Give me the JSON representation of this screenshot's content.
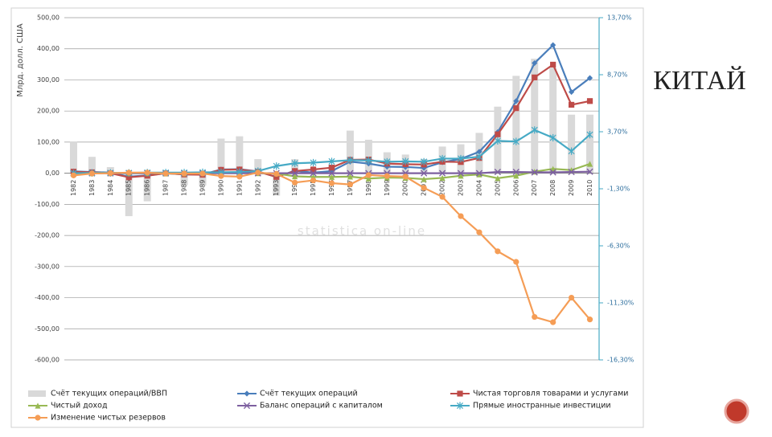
{
  "chart_data": {
    "type": "combo",
    "title": "КИТАЙ",
    "y_axis_label": "Млрд. долл. США",
    "watermark": "statistica on-line",
    "categories": [
      "1982",
      "1983",
      "1984",
      "1985",
      "1986",
      "1987",
      "1988",
      "1989",
      "1990",
      "1991",
      "1992",
      "1993",
      "1994",
      "1995",
      "1996",
      "1997",
      "1998",
      "1999",
      "2000",
      "2001",
      "2002",
      "2003",
      "2004",
      "2005",
      "2006",
      "2007",
      "2008",
      "2009",
      "2010"
    ],
    "ylim": [
      -600,
      500
    ],
    "yticks": [
      {
        "value": 500,
        "label": "500,00"
      },
      {
        "value": 400,
        "label": "400,00"
      },
      {
        "value": 300,
        "label": "300,00"
      },
      {
        "value": 200,
        "label": "200,00"
      },
      {
        "value": 100,
        "label": "100,00"
      },
      {
        "value": 0,
        "label": "0,00"
      },
      {
        "value": -100,
        "label": "-100,00"
      },
      {
        "value": -200,
        "label": "-200,00"
      },
      {
        "value": -300,
        "label": "-300,00"
      },
      {
        "value": -400,
        "label": "-400,00"
      },
      {
        "value": -500,
        "label": "-500,00"
      },
      {
        "value": -600,
        "label": "-600,00"
      }
    ],
    "y2lim": [
      -16.3,
      13.7
    ],
    "y2ticks": [
      {
        "value": 13.7,
        "label": "13,70%"
      },
      {
        "value": 8.7,
        "label": "8,70%"
      },
      {
        "value": 3.7,
        "label": "3,70%"
      },
      {
        "value": -1.3,
        "label": "-1,30%"
      },
      {
        "value": -6.3,
        "label": "-6,30%"
      },
      {
        "value": -11.3,
        "label": "-11,30%"
      },
      {
        "value": -16.3,
        "label": "-16,30%"
      }
    ],
    "grid": true,
    "series": [
      {
        "name": "Счёт текущих операций/ВВП",
        "type": "bar",
        "axis": "y2",
        "color": "#d9d9d9",
        "values": [
          2.8,
          1.5,
          0.6,
          -3.7,
          -2.4,
          0.1,
          -1.0,
          -1.0,
          3.1,
          3.3,
          1.3,
          -1.9,
          1.3,
          0.2,
          0.8,
          3.8,
          3.0,
          1.9,
          1.7,
          1.3,
          2.4,
          2.6,
          3.6,
          5.9,
          8.6,
          10.1,
          9.3,
          5.2,
          5.2
        ]
      },
      {
        "name": "Счёт текущих операций",
        "type": "line",
        "marker": "diamond",
        "color": "#4a7ebb",
        "values": [
          6,
          4,
          2,
          -11,
          -7,
          0,
          -4,
          -4,
          12,
          13,
          6,
          -12,
          8,
          2,
          7,
          37,
          31,
          21,
          20,
          17,
          35,
          46,
          69,
          132,
          232,
          354,
          412,
          261,
          306
        ]
      },
      {
        "name": "Чистая торговля товарами и услугами",
        "type": "line",
        "marker": "square",
        "color": "#be4b48",
        "values": [
          5,
          3,
          0,
          -13,
          -8,
          0,
          -4,
          -5,
          11,
          12,
          5,
          -12,
          7,
          12,
          18,
          43,
          44,
          31,
          29,
          28,
          37,
          36,
          49,
          125,
          209,
          308,
          349,
          220,
          232
        ]
      },
      {
        "name": "Чистый доход",
        "type": "line",
        "marker": "triangle",
        "color": "#98b954",
        "values": [
          0,
          0,
          1,
          0,
          0,
          -1,
          -1,
          0,
          1,
          1,
          0,
          -1,
          -10,
          -12,
          -12,
          -11,
          -17,
          -14,
          -15,
          -19,
          -15,
          -8,
          -4,
          -16,
          -8,
          5,
          14,
          10,
          30
        ]
      },
      {
        "name": "Баланс операций с капиталом",
        "type": "line",
        "marker": "cross",
        "color": "#7d60a0",
        "values": [
          0,
          0,
          0,
          0,
          0,
          0,
          0,
          0,
          0,
          0,
          0,
          0,
          0,
          0,
          0,
          0,
          0,
          0,
          0,
          0,
          0,
          0,
          0,
          4,
          4,
          3,
          3,
          4,
          5
        ]
      },
      {
        "name": "Прямые иностранные инвестиции",
        "type": "line",
        "marker": "star",
        "color": "#46aac5",
        "values": [
          0,
          1,
          1,
          1,
          2,
          2,
          2,
          3,
          3,
          4,
          7,
          23,
          32,
          34,
          38,
          42,
          41,
          37,
          38,
          37,
          47,
          47,
          53,
          104,
          102,
          139,
          114,
          71,
          124
        ]
      },
      {
        "name": "Изменение чистых резервов",
        "type": "line",
        "marker": "circle",
        "color": "#f59d56",
        "values": [
          -7,
          -1,
          0,
          2,
          2,
          -1,
          -1,
          -1,
          -9,
          -11,
          2,
          -2,
          -30,
          -23,
          -32,
          -36,
          -6,
          -9,
          -11,
          -47,
          -76,
          -138,
          -190,
          -251,
          -285,
          -462,
          -479,
          -400,
          -470
        ]
      }
    ]
  }
}
